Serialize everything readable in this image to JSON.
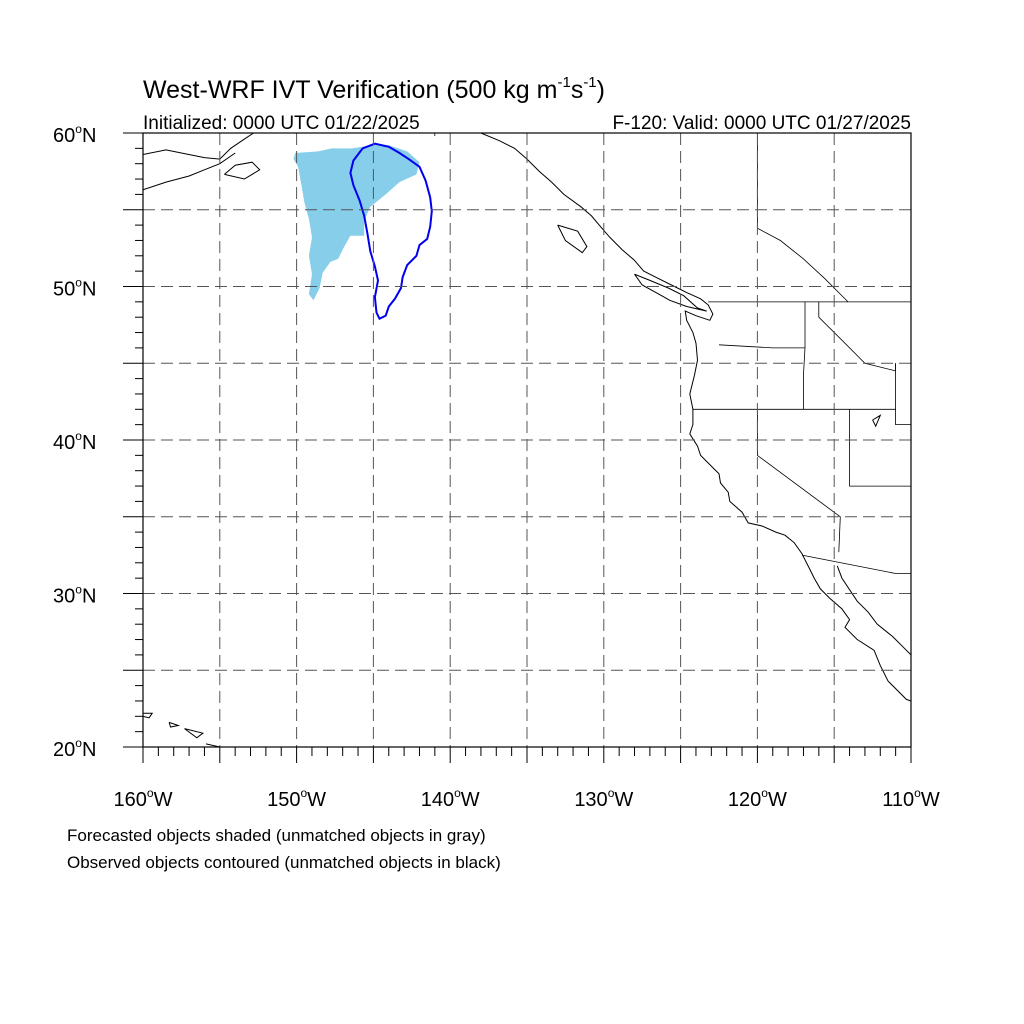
{
  "title": {
    "main": "West-WRF IVT Verification (500 kg m",
    "exp1": "-1",
    "mid": "s",
    "exp2": "-1",
    "close": ")"
  },
  "subtitle_left": "Initialized: 0000 UTC 01/22/2025",
  "subtitle_right": "F-120: Valid: 0000 UTC 01/27/2025",
  "lat_labels": [
    {
      "text": "60",
      "unit": "oN",
      "lat": 60
    },
    {
      "text": "50",
      "unit": "oN",
      "lat": 50
    },
    {
      "text": "40",
      "unit": "oN",
      "lat": 40
    },
    {
      "text": "30",
      "unit": "oN",
      "lat": 30
    },
    {
      "text": "20",
      "unit": "oN",
      "lat": 20
    }
  ],
  "lon_labels": [
    {
      "text": "160",
      "unit": "oW",
      "lon": -160
    },
    {
      "text": "150",
      "unit": "oW",
      "lon": -150
    },
    {
      "text": "140",
      "unit": "oW",
      "lon": -140
    },
    {
      "text": "130",
      "unit": "oW",
      "lon": -130
    },
    {
      "text": "120",
      "unit": "oW",
      "lon": -120
    },
    {
      "text": "110",
      "unit": "oW",
      "lon": -110
    }
  ],
  "map_extent": {
    "lon_min": -160,
    "lon_max": -110,
    "lat_min": 20,
    "lat_max": 60
  },
  "grid": {
    "lon_step": 5,
    "lat_step": 5,
    "style": "dashed"
  },
  "legend_notes": [
    "Forecasted objects shaded (unmatched objects in gray)",
    "Observed objects contoured (unmatched objects in black)"
  ],
  "colors": {
    "forecast_fill": "#87ceeb",
    "observed_contour": "#0000ee",
    "coastline": "#000000",
    "grid": "#555555"
  },
  "objects": {
    "forecast": [
      {
        "lon": -150.1,
        "lat": 58.7
      },
      {
        "lon": -148.6,
        "lat": 58.8
      },
      {
        "lon": -147.7,
        "lat": 59.0
      },
      {
        "lon": -146.4,
        "lat": 59.0
      },
      {
        "lon": -145.7,
        "lat": 59.1
      },
      {
        "lon": -145.0,
        "lat": 59.3
      },
      {
        "lon": -144.0,
        "lat": 59.2
      },
      {
        "lon": -142.8,
        "lat": 58.8
      },
      {
        "lon": -142.0,
        "lat": 58.1
      },
      {
        "lon": -142.2,
        "lat": 57.3
      },
      {
        "lon": -143.3,
        "lat": 56.8
      },
      {
        "lon": -144.2,
        "lat": 56.0
      },
      {
        "lon": -145.2,
        "lat": 55.2
      },
      {
        "lon": -145.6,
        "lat": 54.3
      },
      {
        "lon": -145.6,
        "lat": 53.3
      },
      {
        "lon": -146.2,
        "lat": 53.3
      },
      {
        "lon": -146.5,
        "lat": 53.3
      },
      {
        "lon": -146.9,
        "lat": 52.6
      },
      {
        "lon": -147.3,
        "lat": 51.8
      },
      {
        "lon": -147.8,
        "lat": 51.6
      },
      {
        "lon": -148.3,
        "lat": 50.9
      },
      {
        "lon": -148.5,
        "lat": 49.9
      },
      {
        "lon": -148.9,
        "lat": 49.1
      },
      {
        "lon": -149.2,
        "lat": 49.5
      },
      {
        "lon": -149.0,
        "lat": 50.8
      },
      {
        "lon": -149.2,
        "lat": 52.0
      },
      {
        "lon": -149.0,
        "lat": 53.2
      },
      {
        "lon": -149.2,
        "lat": 54.4
      },
      {
        "lon": -149.5,
        "lat": 55.5
      },
      {
        "lon": -149.7,
        "lat": 56.7
      },
      {
        "lon": -149.9,
        "lat": 57.8
      },
      {
        "lon": -150.2,
        "lat": 58.3
      }
    ],
    "observed": [
      {
        "lon": -145.7,
        "lat": 59.0
      },
      {
        "lon": -144.9,
        "lat": 59.3
      },
      {
        "lon": -144.0,
        "lat": 59.1
      },
      {
        "lon": -143.3,
        "lat": 58.7
      },
      {
        "lon": -142.7,
        "lat": 58.3
      },
      {
        "lon": -142.0,
        "lat": 57.8
      },
      {
        "lon": -141.6,
        "lat": 56.9
      },
      {
        "lon": -141.3,
        "lat": 55.8
      },
      {
        "lon": -141.2,
        "lat": 54.9
      },
      {
        "lon": -141.3,
        "lat": 53.9
      },
      {
        "lon": -141.5,
        "lat": 53.1
      },
      {
        "lon": -142.0,
        "lat": 52.7
      },
      {
        "lon": -142.2,
        "lat": 52.0
      },
      {
        "lon": -142.8,
        "lat": 51.4
      },
      {
        "lon": -143.1,
        "lat": 50.6
      },
      {
        "lon": -143.2,
        "lat": 49.9
      },
      {
        "lon": -143.6,
        "lat": 49.2
      },
      {
        "lon": -144.0,
        "lat": 48.7
      },
      {
        "lon": -144.2,
        "lat": 48.1
      },
      {
        "lon": -144.6,
        "lat": 47.9
      },
      {
        "lon": -144.8,
        "lat": 48.3
      },
      {
        "lon": -144.9,
        "lat": 49.3
      },
      {
        "lon": -144.7,
        "lat": 50.4
      },
      {
        "lon": -144.9,
        "lat": 51.3
      },
      {
        "lon": -145.2,
        "lat": 52.3
      },
      {
        "lon": -145.4,
        "lat": 53.5
      },
      {
        "lon": -145.6,
        "lat": 54.6
      },
      {
        "lon": -145.9,
        "lat": 55.6
      },
      {
        "lon": -146.3,
        "lat": 56.6
      },
      {
        "lon": -146.5,
        "lat": 57.4
      },
      {
        "lon": -146.3,
        "lat": 58.2
      }
    ]
  },
  "coastlines": [
    [
      {
        "lon": -138.0,
        "lat": 60.0
      },
      {
        "lon": -136.8,
        "lat": 59.5
      },
      {
        "lon": -135.8,
        "lat": 59.0
      },
      {
        "lon": -135.0,
        "lat": 58.3
      },
      {
        "lon": -134.2,
        "lat": 57.5
      },
      {
        "lon": -133.4,
        "lat": 56.8
      },
      {
        "lon": -132.6,
        "lat": 56.0
      },
      {
        "lon": -131.5,
        "lat": 55.2
      },
      {
        "lon": -130.8,
        "lat": 54.6
      },
      {
        "lon": -130.3,
        "lat": 54.0
      },
      {
        "lon": -129.6,
        "lat": 53.2
      },
      {
        "lon": -128.8,
        "lat": 52.4
      },
      {
        "lon": -128.0,
        "lat": 51.7
      },
      {
        "lon": -127.4,
        "lat": 51.0
      },
      {
        "lon": -126.6,
        "lat": 50.6
      },
      {
        "lon": -125.6,
        "lat": 50.1
      },
      {
        "lon": -124.6,
        "lat": 49.6
      },
      {
        "lon": -123.7,
        "lat": 49.2
      },
      {
        "lon": -123.2,
        "lat": 48.8
      },
      {
        "lon": -122.9,
        "lat": 48.2
      },
      {
        "lon": -123.1,
        "lat": 47.8
      },
      {
        "lon": -124.0,
        "lat": 48.1
      },
      {
        "lon": -124.7,
        "lat": 48.4
      },
      {
        "lon": -124.6,
        "lat": 47.8
      },
      {
        "lon": -124.2,
        "lat": 47.0
      },
      {
        "lon": -124.0,
        "lat": 46.3
      },
      {
        "lon": -123.9,
        "lat": 45.2
      },
      {
        "lon": -124.1,
        "lat": 44.2
      },
      {
        "lon": -124.4,
        "lat": 43.0
      },
      {
        "lon": -124.2,
        "lat": 42.0
      },
      {
        "lon": -124.2,
        "lat": 41.0
      },
      {
        "lon": -124.4,
        "lat": 40.4
      },
      {
        "lon": -123.9,
        "lat": 39.6
      },
      {
        "lon": -123.7,
        "lat": 39.0
      },
      {
        "lon": -123.0,
        "lat": 38.3
      },
      {
        "lon": -122.5,
        "lat": 37.8
      },
      {
        "lon": -122.4,
        "lat": 37.2
      },
      {
        "lon": -121.9,
        "lat": 36.6
      },
      {
        "lon": -121.8,
        "lat": 36.0
      },
      {
        "lon": -121.0,
        "lat": 35.3
      },
      {
        "lon": -120.6,
        "lat": 34.6
      },
      {
        "lon": -119.7,
        "lat": 34.4
      },
      {
        "lon": -118.8,
        "lat": 34.0
      },
      {
        "lon": -118.2,
        "lat": 33.8
      },
      {
        "lon": -117.6,
        "lat": 33.3
      },
      {
        "lon": -117.1,
        "lat": 32.6
      },
      {
        "lon": -116.7,
        "lat": 31.8
      },
      {
        "lon": -116.3,
        "lat": 31.0
      },
      {
        "lon": -115.9,
        "lat": 30.3
      },
      {
        "lon": -115.3,
        "lat": 29.7
      },
      {
        "lon": -114.5,
        "lat": 29.0
      },
      {
        "lon": -114.0,
        "lat": 28.3
      },
      {
        "lon": -114.3,
        "lat": 27.8
      },
      {
        "lon": -113.5,
        "lat": 27.0
      },
      {
        "lon": -112.4,
        "lat": 26.3
      },
      {
        "lon": -112.0,
        "lat": 25.3
      },
      {
        "lon": -111.5,
        "lat": 24.3
      },
      {
        "lon": -110.3,
        "lat": 23.1
      },
      {
        "lon": -110.0,
        "lat": 23.0
      }
    ],
    [
      {
        "lon": -114.8,
        "lat": 31.8
      },
      {
        "lon": -114.5,
        "lat": 31.0
      },
      {
        "lon": -113.5,
        "lat": 29.5
      },
      {
        "lon": -112.8,
        "lat": 28.8
      },
      {
        "lon": -112.2,
        "lat": 28.0
      },
      {
        "lon": -111.2,
        "lat": 27.2
      },
      {
        "lon": -110.5,
        "lat": 26.5
      },
      {
        "lon": -110.0,
        "lat": 26.0
      }
    ],
    [
      {
        "lon": -160.0,
        "lat": 58.6
      },
      {
        "lon": -158.5,
        "lat": 58.9
      },
      {
        "lon": -157.5,
        "lat": 58.7
      },
      {
        "lon": -156.0,
        "lat": 58.4
      },
      {
        "lon": -155.0,
        "lat": 58.3
      },
      {
        "lon": -154.3,
        "lat": 59.0
      },
      {
        "lon": -153.4,
        "lat": 59.6
      },
      {
        "lon": -152.8,
        "lat": 60.0
      }
    ],
    [
      {
        "lon": -160.0,
        "lat": 56.3
      },
      {
        "lon": -158.5,
        "lat": 56.8
      },
      {
        "lon": -157.0,
        "lat": 57.2
      },
      {
        "lon": -156.0,
        "lat": 57.6
      },
      {
        "lon": -155.0,
        "lat": 58.0
      },
      {
        "lon": -154.0,
        "lat": 58.7
      }
    ],
    [
      {
        "lon": -154.7,
        "lat": 57.3
      },
      {
        "lon": -153.4,
        "lat": 57.0
      },
      {
        "lon": -152.4,
        "lat": 57.6
      },
      {
        "lon": -152.9,
        "lat": 58.1
      },
      {
        "lon": -154.0,
        "lat": 57.9
      },
      {
        "lon": -154.7,
        "lat": 57.3
      }
    ],
    [
      {
        "lon": -133.0,
        "lat": 54.0
      },
      {
        "lon": -131.7,
        "lat": 53.6
      },
      {
        "lon": -131.1,
        "lat": 52.6
      },
      {
        "lon": -131.4,
        "lat": 52.2
      },
      {
        "lon": -132.5,
        "lat": 53.0
      },
      {
        "lon": -133.0,
        "lat": 54.0
      }
    ],
    [
      {
        "lon": -128.0,
        "lat": 50.8
      },
      {
        "lon": -127.0,
        "lat": 50.4
      },
      {
        "lon": -125.8,
        "lat": 49.9
      },
      {
        "lon": -124.8,
        "lat": 49.4
      },
      {
        "lon": -123.9,
        "lat": 48.6
      },
      {
        "lon": -123.3,
        "lat": 48.4
      },
      {
        "lon": -124.6,
        "lat": 48.7
      },
      {
        "lon": -125.7,
        "lat": 49.1
      },
      {
        "lon": -126.6,
        "lat": 49.6
      },
      {
        "lon": -127.5,
        "lat": 50.1
      },
      {
        "lon": -128.0,
        "lat": 50.8
      }
    ],
    [
      {
        "lon": -160.0,
        "lat": 22.2
      },
      {
        "lon": -159.4,
        "lat": 22.2
      },
      {
        "lon": -159.6,
        "lat": 21.9
      },
      {
        "lon": -160.0,
        "lat": 22.0
      }
    ],
    [
      {
        "lon": -158.3,
        "lat": 21.6
      },
      {
        "lon": -157.7,
        "lat": 21.4
      },
      {
        "lon": -158.2,
        "lat": 21.3
      },
      {
        "lon": -158.3,
        "lat": 21.6
      }
    ],
    [
      {
        "lon": -157.3,
        "lat": 21.2
      },
      {
        "lon": -156.1,
        "lat": 20.9
      },
      {
        "lon": -156.5,
        "lat": 20.6
      },
      {
        "lon": -157.3,
        "lat": 21.2
      }
    ],
    [
      {
        "lon": -155.9,
        "lat": 20.2
      },
      {
        "lon": -155.0,
        "lat": 20.0
      }
    ],
    [
      {
        "lon": -112.5,
        "lat": 41.3
      },
      {
        "lon": -112.0,
        "lat": 41.6
      },
      {
        "lon": -112.3,
        "lat": 40.9
      },
      {
        "lon": -112.5,
        "lat": 41.3
      }
    ]
  ],
  "borders": [
    [
      {
        "lon": -141.0,
        "lat": 60.0
      },
      {
        "lon": -141.0,
        "lat": 59.8
      }
    ],
    [
      {
        "lon": -123.2,
        "lat": 49.0
      },
      {
        "lon": -110.0,
        "lat": 49.0
      }
    ],
    [
      {
        "lon": -124.2,
        "lat": 42.0
      },
      {
        "lon": -111.0,
        "lat": 42.0
      }
    ],
    [
      {
        "lon": -120.0,
        "lat": 42.0
      },
      {
        "lon": -120.0,
        "lat": 39.0
      },
      {
        "lon": -114.6,
        "lat": 35.0
      },
      {
        "lon": -114.7,
        "lat": 32.7
      }
    ],
    [
      {
        "lon": -117.1,
        "lat": 32.5
      },
      {
        "lon": -111.0,
        "lat": 31.3
      },
      {
        "lon": -110.0,
        "lat": 31.3
      }
    ],
    [
      {
        "lon": -116.9,
        "lat": 49.0
      },
      {
        "lon": -116.9,
        "lat": 46.0
      },
      {
        "lon": -117.0,
        "lat": 44.3
      },
      {
        "lon": -117.0,
        "lat": 42.0
      }
    ],
    [
      {
        "lon": -122.5,
        "lat": 46.2
      },
      {
        "lon": -119.0,
        "lat": 46.0
      },
      {
        "lon": -116.9,
        "lat": 46.0
      }
    ],
    [
      {
        "lon": -114.0,
        "lat": 42.0
      },
      {
        "lon": -114.0,
        "lat": 37.0
      },
      {
        "lon": -110.0,
        "lat": 37.0
      }
    ],
    [
      {
        "lon": -116.0,
        "lat": 49.0
      },
      {
        "lon": -116.0,
        "lat": 48.0
      },
      {
        "lon": -114.5,
        "lat": 46.5
      },
      {
        "lon": -113.0,
        "lat": 45.0
      },
      {
        "lon": -111.0,
        "lat": 44.5
      },
      {
        "lon": -111.0,
        "lat": 45.0
      }
    ],
    [
      {
        "lon": -111.0,
        "lat": 45.0
      },
      {
        "lon": -111.0,
        "lat": 41.0
      },
      {
        "lon": -110.0,
        "lat": 41.0
      }
    ],
    [
      {
        "lon": -120.0,
        "lat": 60.0
      },
      {
        "lon": -120.0,
        "lat": 53.8
      },
      {
        "lon": -118.5,
        "lat": 53.0
      },
      {
        "lon": -117.0,
        "lat": 51.8
      },
      {
        "lon": -115.6,
        "lat": 50.5
      },
      {
        "lon": -114.1,
        "lat": 49.0
      }
    ]
  ]
}
